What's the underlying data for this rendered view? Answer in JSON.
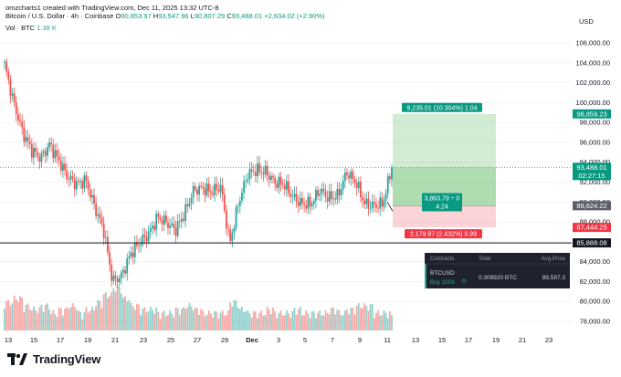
{
  "header": {
    "title": "Bitcoin / U.S. Dollar · 4h · Coinbase",
    "created": "omzcharts1 created with TradingView.com, Dec 11, 2025 13:32 UTC-8",
    "ohlc": [
      {
        "key": "O",
        "value": "90,853.97"
      },
      {
        "key": "H",
        "value": "93,547.96"
      },
      {
        "key": "L",
        "value": "90,807.29"
      },
      {
        "key": "C",
        "value": "93,488.01"
      }
    ],
    "change": "+2,634.02 (+2.90%)",
    "vol_label": "Vol · BTC",
    "vol_value": "1.38 K"
  },
  "axis": {
    "currency": "USD",
    "ticks": [
      "106,000.00",
      "104,000.00",
      "102,000.00",
      "100,000.00",
      "98,000.00",
      "96,000.00",
      "94,000.00",
      "92,000.00",
      "90,000.00",
      "88,000.00",
      "86,000.00",
      "84,000.00",
      "82,000.00",
      "80,000.00",
      "78,000.00"
    ],
    "x_labels": [
      "13",
      "15",
      "17",
      "19",
      "21",
      "23",
      "25",
      "27",
      "29",
      "Dec",
      "3",
      "5",
      "7",
      "9",
      "11",
      "13",
      "15",
      "17",
      "19",
      "21",
      "23"
    ]
  },
  "price_labels": {
    "target": "98,859.23",
    "current": "93,488.01",
    "countdown": "02:27:15",
    "entry": "89,624.22",
    "stop": "87,444.25",
    "line": "85,888.08"
  },
  "position_tool": {
    "target_text": "9,235.01 (10.304%) 1.04",
    "mid_text_1": "3,863.79 ÷ 0",
    "mid_text_2": "4.24",
    "stop_text": "2,179.97 (2.432%) 0.99"
  },
  "trade_panel": {
    "headers": [
      "Contracts",
      "Total",
      "Avg.Price"
    ],
    "symbol": "BTCUSD",
    "side": "Buy 100X",
    "total": "0.309920 BTC",
    "avg_price": "89,597.3"
  },
  "brand": {
    "name": "TradingView"
  },
  "colors": {
    "up": "#26a69a",
    "down": "#ef5350",
    "target_zone": "#a5d6a7",
    "stop_zone": "#ffcdd2",
    "label_green": "#089981",
    "label_red": "#f23645"
  },
  "chart_data": {
    "type": "candlestick",
    "symbol": "Bitcoin / U.S. Dollar",
    "interval": "4h",
    "ylim": [
      77000,
      107000
    ],
    "x_range_days": [
      13,
      45
    ],
    "horizontal_line": 85888.08,
    "position": {
      "entry": 89624.22,
      "target": 98859.23,
      "stop": 87444.25
    },
    "series": [
      {
        "name": "close",
        "x": [
          12.8,
          13.5,
          14,
          14.6,
          15.2,
          16,
          16.8,
          17.5,
          18.2,
          18.8,
          19.4,
          20,
          20.4,
          20.9,
          21.5,
          22,
          22.6,
          23.2,
          24,
          24.8,
          25.5,
          26.2,
          27,
          28,
          29,
          30,
          30.5,
          31,
          31.6,
          32,
          32.6,
          33.2,
          34,
          34.8,
          35.5,
          36.2,
          37,
          37.8,
          38.5,
          39.2,
          39.8,
          40.3,
          40.8,
          41.2
        ],
        "y": [
          103800,
          100000,
          97000,
          95200,
          94400,
          95800,
          94200,
          92500,
          91800,
          92200,
          89500,
          87200,
          82000,
          82600,
          84800,
          85900,
          86800,
          88500,
          87900,
          87200,
          88900,
          91200,
          91400,
          91000,
          91600,
          85800,
          90000,
          92800,
          93200,
          93000,
          92000,
          91800,
          90500,
          89800,
          89800,
          91200,
          90400,
          90600,
          93000,
          92000,
          89800,
          89600,
          89800,
          93488
        ]
      },
      {
        "name": "volume",
        "values": [
          6,
          7,
          5,
          4,
          5,
          3,
          4,
          5,
          3,
          4,
          6,
          8,
          10,
          7,
          5,
          4,
          4,
          3,
          3,
          4,
          5,
          4,
          3,
          3,
          3,
          6,
          4,
          3,
          3,
          4,
          3,
          3,
          4,
          3,
          3,
          3,
          4,
          3,
          4,
          5,
          5,
          3,
          3,
          2
        ]
      }
    ]
  }
}
